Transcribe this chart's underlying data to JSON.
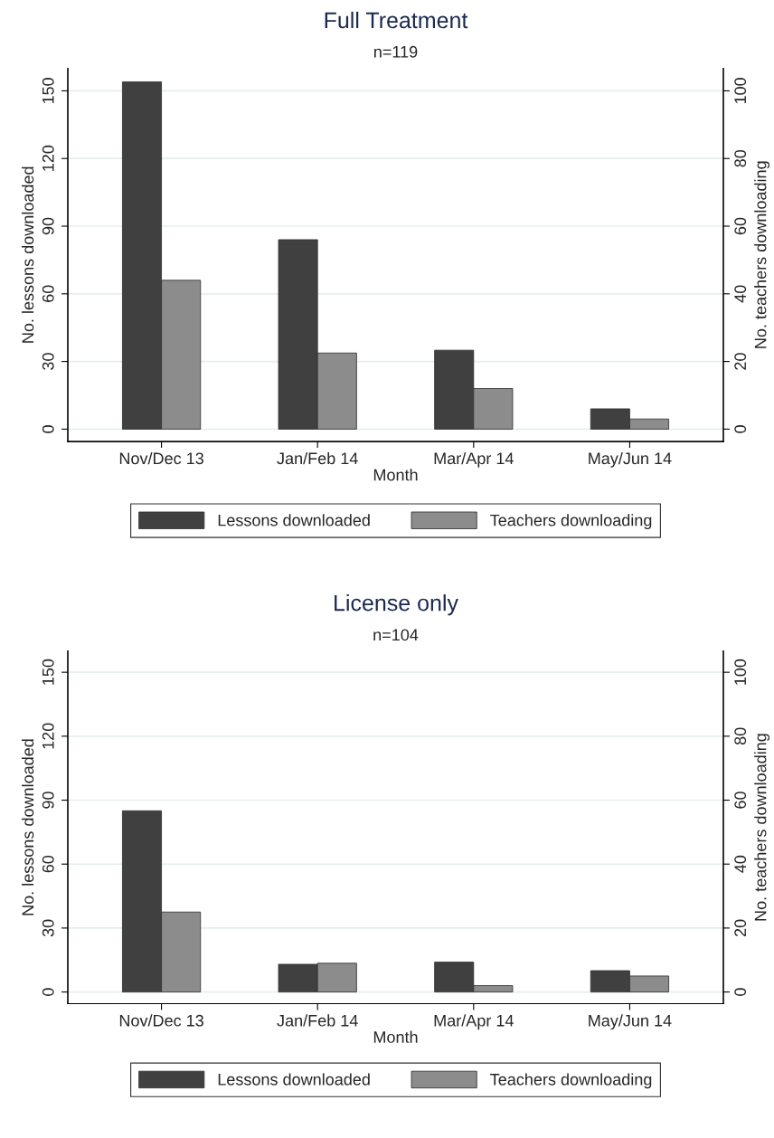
{
  "chart_data": [
    {
      "type": "bar",
      "title": "Full Treatment",
      "subtitle": "n=119",
      "xlabel": "Month",
      "ylabel": "No. lessons downloaded",
      "y2label": "No. teachers downloading",
      "categories": [
        "Nov/Dec 13",
        "Jan/Feb 14",
        "Mar/Apr 14",
        "May/Jun 14"
      ],
      "series": [
        {
          "name": "Lessons downloaded",
          "color": "#404040",
          "values": [
            154,
            84,
            35,
            9
          ]
        },
        {
          "name": "Teachers downloading",
          "color": "#8c8c8c",
          "values": [
            44,
            22.5,
            12,
            3
          ],
          "axis": "y2"
        }
      ],
      "ylim": [
        -5.5,
        160
      ],
      "yticks": [
        0,
        30,
        60,
        90,
        120,
        150
      ],
      "y2lim": [
        -3.67,
        106.67
      ],
      "y2ticks": [
        0,
        20,
        40,
        60,
        80,
        100
      ],
      "grid": "y",
      "legend": "bottom"
    },
    {
      "type": "bar",
      "title": "License only",
      "subtitle": "n=104",
      "xlabel": "Month",
      "ylabel": "No. lessons downloaded",
      "y2label": "No. teachers downloading",
      "categories": [
        "Nov/Dec 13",
        "Jan/Feb 14",
        "Mar/Apr 14",
        "May/Jun 14"
      ],
      "series": [
        {
          "name": "Lessons downloaded",
          "color": "#404040",
          "values": [
            85,
            13,
            14,
            10
          ]
        },
        {
          "name": "Teachers downloading",
          "color": "#8c8c8c",
          "values": [
            25,
            9,
            2,
            5
          ],
          "axis": "y2"
        }
      ],
      "ylim": [
        -5.5,
        160
      ],
      "yticks": [
        0,
        30,
        60,
        90,
        120,
        150
      ],
      "y2lim": [
        -3.67,
        106.67
      ],
      "y2ticks": [
        0,
        20,
        40,
        60,
        80,
        100
      ],
      "grid": "y",
      "legend": "bottom"
    }
  ]
}
